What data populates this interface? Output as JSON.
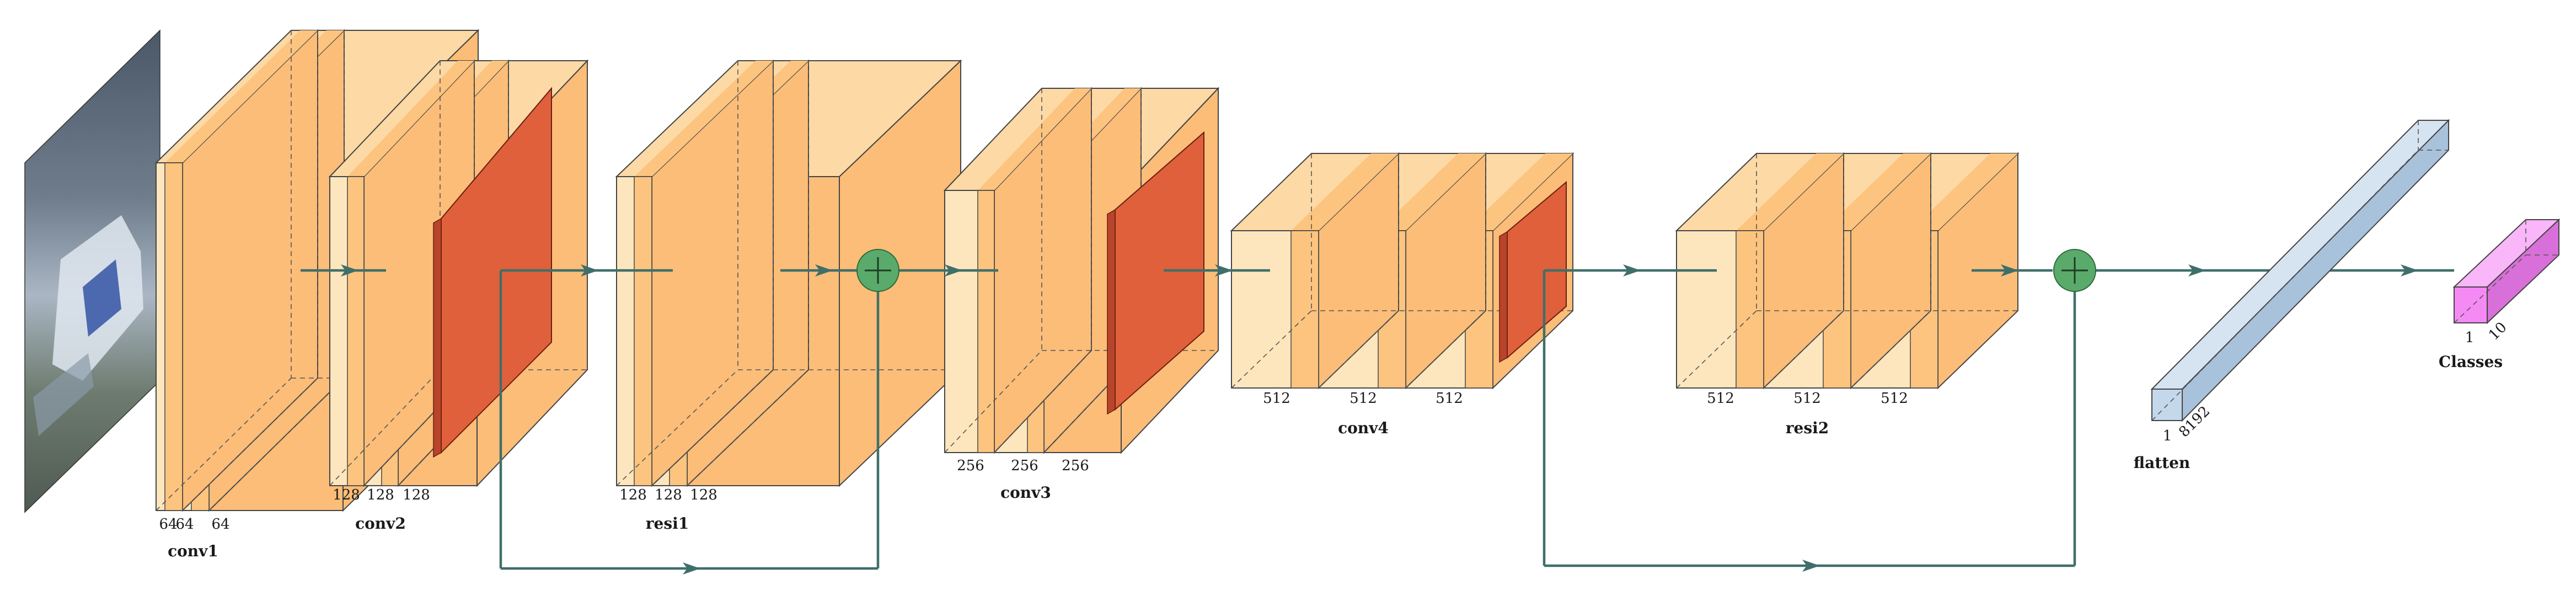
{
  "blocks": [
    {
      "id": "conv1",
      "name": "conv1",
      "channels": [
        "64",
        "64",
        "64"
      ]
    },
    {
      "id": "conv2",
      "name": "conv2",
      "channels": [
        "128",
        "128",
        "128"
      ]
    },
    {
      "id": "resi1",
      "name": "resi1",
      "channels": [
        "128",
        "128",
        "128"
      ]
    },
    {
      "id": "conv3",
      "name": "conv3",
      "channels": [
        "256",
        "256",
        "256"
      ]
    },
    {
      "id": "conv4",
      "name": "conv4",
      "channels": [
        "512",
        "512",
        "512"
      ]
    },
    {
      "id": "resi2",
      "name": "resi2",
      "channels": [
        "512",
        "512",
        "512"
      ]
    }
  ],
  "flatten": {
    "name": "flatten",
    "dims": [
      "1",
      "8192"
    ]
  },
  "classes": {
    "name": "Classes",
    "dims": [
      "1",
      "10"
    ]
  },
  "colors": {
    "conv_front": "#fde6bd",
    "conv_band": "#fcc47f",
    "conv_side": "#fbbd78",
    "conv_top": "#fdd9a5",
    "pool": "#e0603b",
    "sum": "#5aaa6c",
    "flatten": "#c4d8ec",
    "classes": "#f58af5",
    "connection": "#3f6f6a",
    "input_image": "#5c6e80"
  },
  "icons": {
    "sum": "plus-circle-icon",
    "arrow": "arrowhead-icon"
  }
}
